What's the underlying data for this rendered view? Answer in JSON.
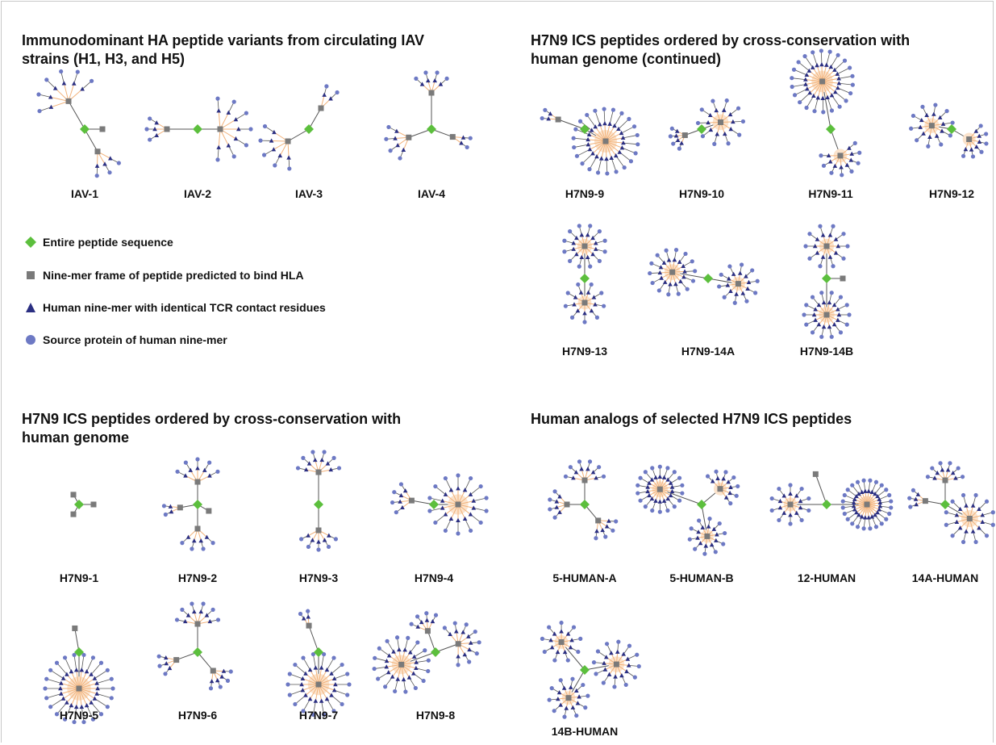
{
  "sections": {
    "iav": {
      "title_lines": [
        "Immunodominant HA peptide variants from circulating IAV",
        "strains (H1, H3, and H5)"
      ]
    },
    "h7n9_cont": {
      "title_lines": [
        "H7N9 ICS peptides ordered by cross-conservation with",
        "human genome (continued)"
      ]
    },
    "h7n9": {
      "title_lines": [
        "H7N9 ICS peptides ordered by cross-conservation with",
        "human genome"
      ]
    },
    "human": {
      "title_lines": [
        "Human analogs of selected H7N9 ICS peptides"
      ]
    }
  },
  "legend": [
    {
      "shape": "diamond",
      "label": "Entire peptide sequence"
    },
    {
      "shape": "square",
      "label": "Nine-mer frame of peptide predicted to bind HLA"
    },
    {
      "shape": "triangle",
      "label": "Human nine-mer with identical TCR contact residues"
    },
    {
      "shape": "circle",
      "label": "Source protein of human nine-mer"
    }
  ],
  "colors": {
    "peptide": "#5cbf3d",
    "frame": "#7a7a7a",
    "ninemer": "#2b2f82",
    "protein": "#6d79c4",
    "edge_dark": "#555555",
    "edge_orange": "#f2b27a",
    "halo": "#fbe3cc"
  },
  "networks": [
    {
      "label": "IAV-1"
    },
    {
      "label": "IAV-2"
    },
    {
      "label": "IAV-3"
    },
    {
      "label": "IAV-4"
    },
    {
      "label": "H7N9-9"
    },
    {
      "label": "H7N9-10"
    },
    {
      "label": "H7N9-11"
    },
    {
      "label": "H7N9-12"
    },
    {
      "label": "H7N9-13"
    },
    {
      "label": "H7N9-14A"
    },
    {
      "label": "H7N9-14B"
    },
    {
      "label": "H7N9-1"
    },
    {
      "label": "H7N9-2"
    },
    {
      "label": "H7N9-3"
    },
    {
      "label": "H7N9-4"
    },
    {
      "label": "H7N9-5"
    },
    {
      "label": "H7N9-6"
    },
    {
      "label": "H7N9-7"
    },
    {
      "label": "H7N9-8"
    },
    {
      "label": "5-HUMAN-A"
    },
    {
      "label": "5-HUMAN-B"
    },
    {
      "label": "12-HUMAN"
    },
    {
      "label": "14A-HUMAN"
    },
    {
      "label": "14B-HUMAN"
    }
  ]
}
